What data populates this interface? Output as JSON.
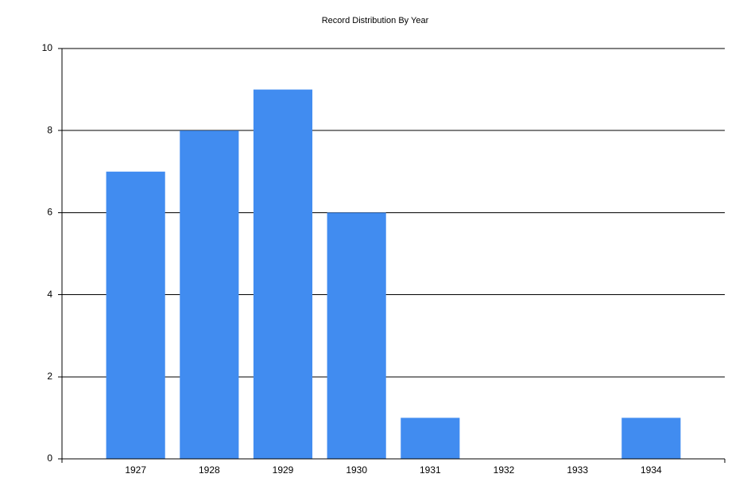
{
  "chart_data": {
    "type": "bar",
    "title": "Record Distribution By Year",
    "categories": [
      "1927",
      "1928",
      "1929",
      "1930",
      "1931",
      "1932",
      "1933",
      "1934"
    ],
    "values": [
      7,
      8,
      9,
      6,
      1,
      0,
      0,
      1
    ],
    "color": "#418cf0",
    "ylim": [
      0,
      10
    ],
    "yticks": [
      0,
      2,
      4,
      6,
      8,
      10
    ],
    "grid": true
  }
}
